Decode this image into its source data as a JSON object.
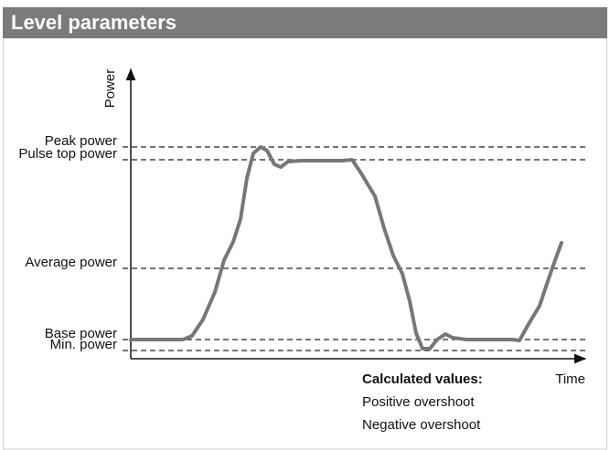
{
  "header": {
    "title": "Level parameters"
  },
  "axes": {
    "y_label": "Power",
    "x_label": "Time"
  },
  "levels": [
    "Peak power",
    "Pulse top power",
    "Average power",
    "Base power",
    "Min. power"
  ],
  "calculated": {
    "title": "Calculated values:",
    "items": [
      "Positive overshoot",
      "Negative overshoot"
    ]
  }
}
